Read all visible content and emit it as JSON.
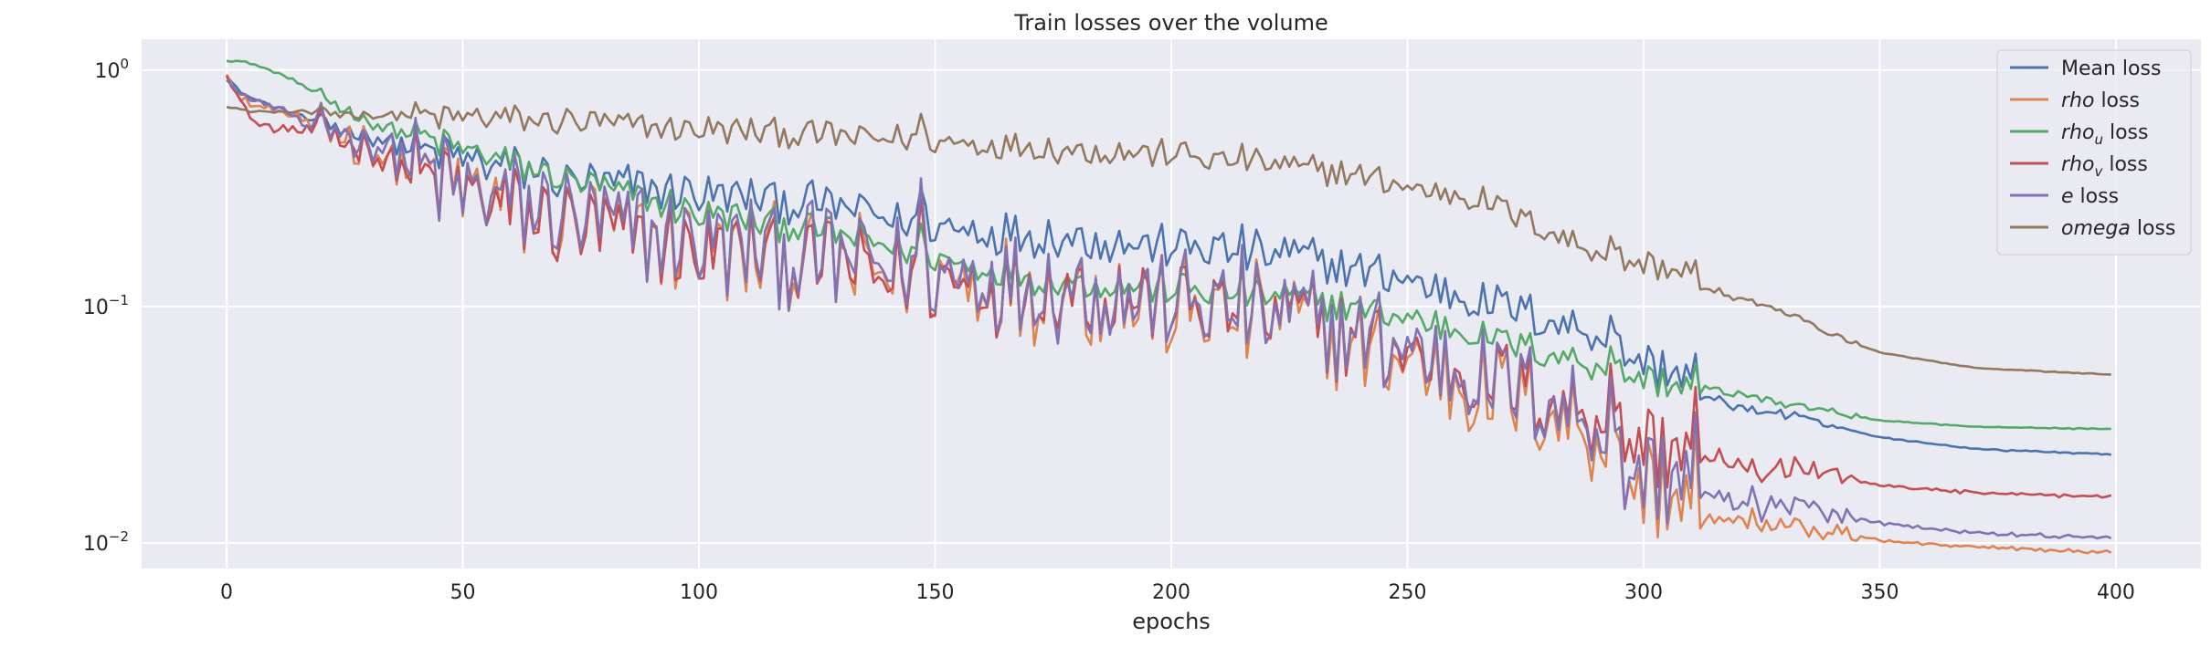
{
  "chart_data": {
    "type": "line",
    "title": "Train losses over the volume",
    "xlabel": "epochs",
    "ylabel": "",
    "yscale": "log",
    "xlim": [
      -18,
      418
    ],
    "ylim": [
      0.0078,
      1.35
    ],
    "x_ticks": [
      0,
      50,
      100,
      150,
      200,
      250,
      300,
      350,
      400
    ],
    "y_ticks": [
      {
        "value": 1,
        "base": "10",
        "exp": "0"
      },
      {
        "value": 0.1,
        "base": "10",
        "exp": "−1"
      },
      {
        "value": 0.01,
        "base": "10",
        "exp": "−2"
      }
    ],
    "grid": true,
    "legend_position": "upper right",
    "background": "#eaeaf2",
    "x_range": [
      0,
      399
    ],
    "series": [
      {
        "name": "Mean loss",
        "legend_italic": "",
        "legend_sub": "",
        "legend_suffix": "Mean loss",
        "color": "#4c72b0",
        "keypoints": [
          [
            0,
            0.95
          ],
          [
            3,
            0.8
          ],
          [
            10,
            0.7
          ],
          [
            20,
            0.6
          ],
          [
            30,
            0.52
          ],
          [
            50,
            0.42
          ],
          [
            75,
            0.34
          ],
          [
            100,
            0.3
          ],
          [
            125,
            0.27
          ],
          [
            150,
            0.22
          ],
          [
            175,
            0.2
          ],
          [
            200,
            0.18
          ],
          [
            225,
            0.165
          ],
          [
            250,
            0.13
          ],
          [
            275,
            0.095
          ],
          [
            290,
            0.075
          ],
          [
            300,
            0.058
          ],
          [
            310,
            0.05
          ],
          [
            312,
            0.042
          ],
          [
            320,
            0.038
          ],
          [
            335,
            0.033
          ],
          [
            350,
            0.028
          ],
          [
            370,
            0.025
          ],
          [
            399,
            0.0237
          ]
        ],
        "noise": 0.09
      },
      {
        "name": "rho loss",
        "legend_italic": "rho",
        "legend_sub": "",
        "legend_suffix": " loss",
        "color": "#dd8452",
        "keypoints": [
          [
            0,
            0.98
          ],
          [
            3,
            0.75
          ],
          [
            10,
            0.68
          ],
          [
            20,
            0.56
          ],
          [
            30,
            0.48
          ],
          [
            50,
            0.3
          ],
          [
            75,
            0.22
          ],
          [
            100,
            0.18
          ],
          [
            125,
            0.15
          ],
          [
            150,
            0.13
          ],
          [
            175,
            0.12
          ],
          [
            200,
            0.1
          ],
          [
            225,
            0.085
          ],
          [
            250,
            0.06
          ],
          [
            275,
            0.04
          ],
          [
            290,
            0.03
          ],
          [
            295,
            0.019
          ],
          [
            310,
            0.016
          ],
          [
            312,
            0.013
          ],
          [
            320,
            0.0125
          ],
          [
            335,
            0.0115
          ],
          [
            350,
            0.0103
          ],
          [
            370,
            0.0096
          ],
          [
            399,
            0.0091
          ]
        ],
        "noise": 0.22
      },
      {
        "name": "rho_u loss",
        "legend_italic": "rho",
        "legend_sub": "u",
        "legend_suffix": " loss",
        "color": "#55a868",
        "keypoints": [
          [
            0,
            1.1
          ],
          [
            4,
            1.08
          ],
          [
            8,
            1.02
          ],
          [
            15,
            0.9
          ],
          [
            20,
            0.78
          ],
          [
            30,
            0.6
          ],
          [
            50,
            0.46
          ],
          [
            75,
            0.33
          ],
          [
            100,
            0.25
          ],
          [
            125,
            0.21
          ],
          [
            150,
            0.16
          ],
          [
            175,
            0.13
          ],
          [
            200,
            0.12
          ],
          [
            225,
            0.11
          ],
          [
            250,
            0.09
          ],
          [
            275,
            0.068
          ],
          [
            300,
            0.05
          ],
          [
            312,
            0.045
          ],
          [
            320,
            0.043
          ],
          [
            335,
            0.037
          ],
          [
            350,
            0.033
          ],
          [
            370,
            0.031
          ],
          [
            399,
            0.0303
          ]
        ],
        "noise": 0.07
      },
      {
        "name": "rho_v loss",
        "legend_italic": "rho",
        "legend_sub": "v",
        "legend_suffix": " loss",
        "color": "#c44e52",
        "keypoints": [
          [
            0,
            0.96
          ],
          [
            3,
            0.75
          ],
          [
            6,
            0.6
          ],
          [
            10,
            0.56
          ],
          [
            20,
            0.57
          ],
          [
            30,
            0.47
          ],
          [
            50,
            0.3
          ],
          [
            75,
            0.21
          ],
          [
            100,
            0.17
          ],
          [
            125,
            0.15
          ],
          [
            150,
            0.13
          ],
          [
            175,
            0.12
          ],
          [
            200,
            0.105
          ],
          [
            225,
            0.09
          ],
          [
            250,
            0.065
          ],
          [
            275,
            0.045
          ],
          [
            290,
            0.035
          ],
          [
            295,
            0.028
          ],
          [
            310,
            0.025
          ],
          [
            312,
            0.022
          ],
          [
            320,
            0.021
          ],
          [
            335,
            0.0195
          ],
          [
            350,
            0.0175
          ],
          [
            370,
            0.0163
          ],
          [
            399,
            0.0157
          ]
        ],
        "noise": 0.2
      },
      {
        "name": "e loss",
        "legend_italic": "e",
        "legend_sub": "",
        "legend_suffix": " loss",
        "color": "#8172b3",
        "keypoints": [
          [
            0,
            0.92
          ],
          [
            3,
            0.77
          ],
          [
            10,
            0.7
          ],
          [
            20,
            0.58
          ],
          [
            30,
            0.49
          ],
          [
            50,
            0.31
          ],
          [
            75,
            0.23
          ],
          [
            100,
            0.19
          ],
          [
            125,
            0.16
          ],
          [
            150,
            0.14
          ],
          [
            175,
            0.125
          ],
          [
            200,
            0.105
          ],
          [
            225,
            0.09
          ],
          [
            250,
            0.065
          ],
          [
            275,
            0.045
          ],
          [
            290,
            0.033
          ],
          [
            295,
            0.021
          ],
          [
            310,
            0.019
          ],
          [
            312,
            0.016
          ],
          [
            320,
            0.015
          ],
          [
            335,
            0.0135
          ],
          [
            350,
            0.0122
          ],
          [
            370,
            0.011
          ],
          [
            399,
            0.0105
          ]
        ],
        "noise": 0.22
      },
      {
        "name": "omega loss",
        "legend_italic": "omega",
        "legend_sub": "",
        "legend_suffix": " loss",
        "color": "#937860",
        "keypoints": [
          [
            0,
            0.7
          ],
          [
            5,
            0.67
          ],
          [
            20,
            0.66
          ],
          [
            50,
            0.63
          ],
          [
            75,
            0.6
          ],
          [
            100,
            0.56
          ],
          [
            125,
            0.53
          ],
          [
            150,
            0.5
          ],
          [
            175,
            0.47
          ],
          [
            200,
            0.44
          ],
          [
            225,
            0.39
          ],
          [
            240,
            0.36
          ],
          [
            250,
            0.32
          ],
          [
            265,
            0.29
          ],
          [
            275,
            0.23
          ],
          [
            290,
            0.17
          ],
          [
            300,
            0.15
          ],
          [
            310,
            0.14
          ],
          [
            312,
            0.12
          ],
          [
            320,
            0.11
          ],
          [
            330,
            0.095
          ],
          [
            340,
            0.075
          ],
          [
            350,
            0.064
          ],
          [
            370,
            0.055
          ],
          [
            399,
            0.0515
          ]
        ],
        "noise": 0.06
      }
    ]
  }
}
